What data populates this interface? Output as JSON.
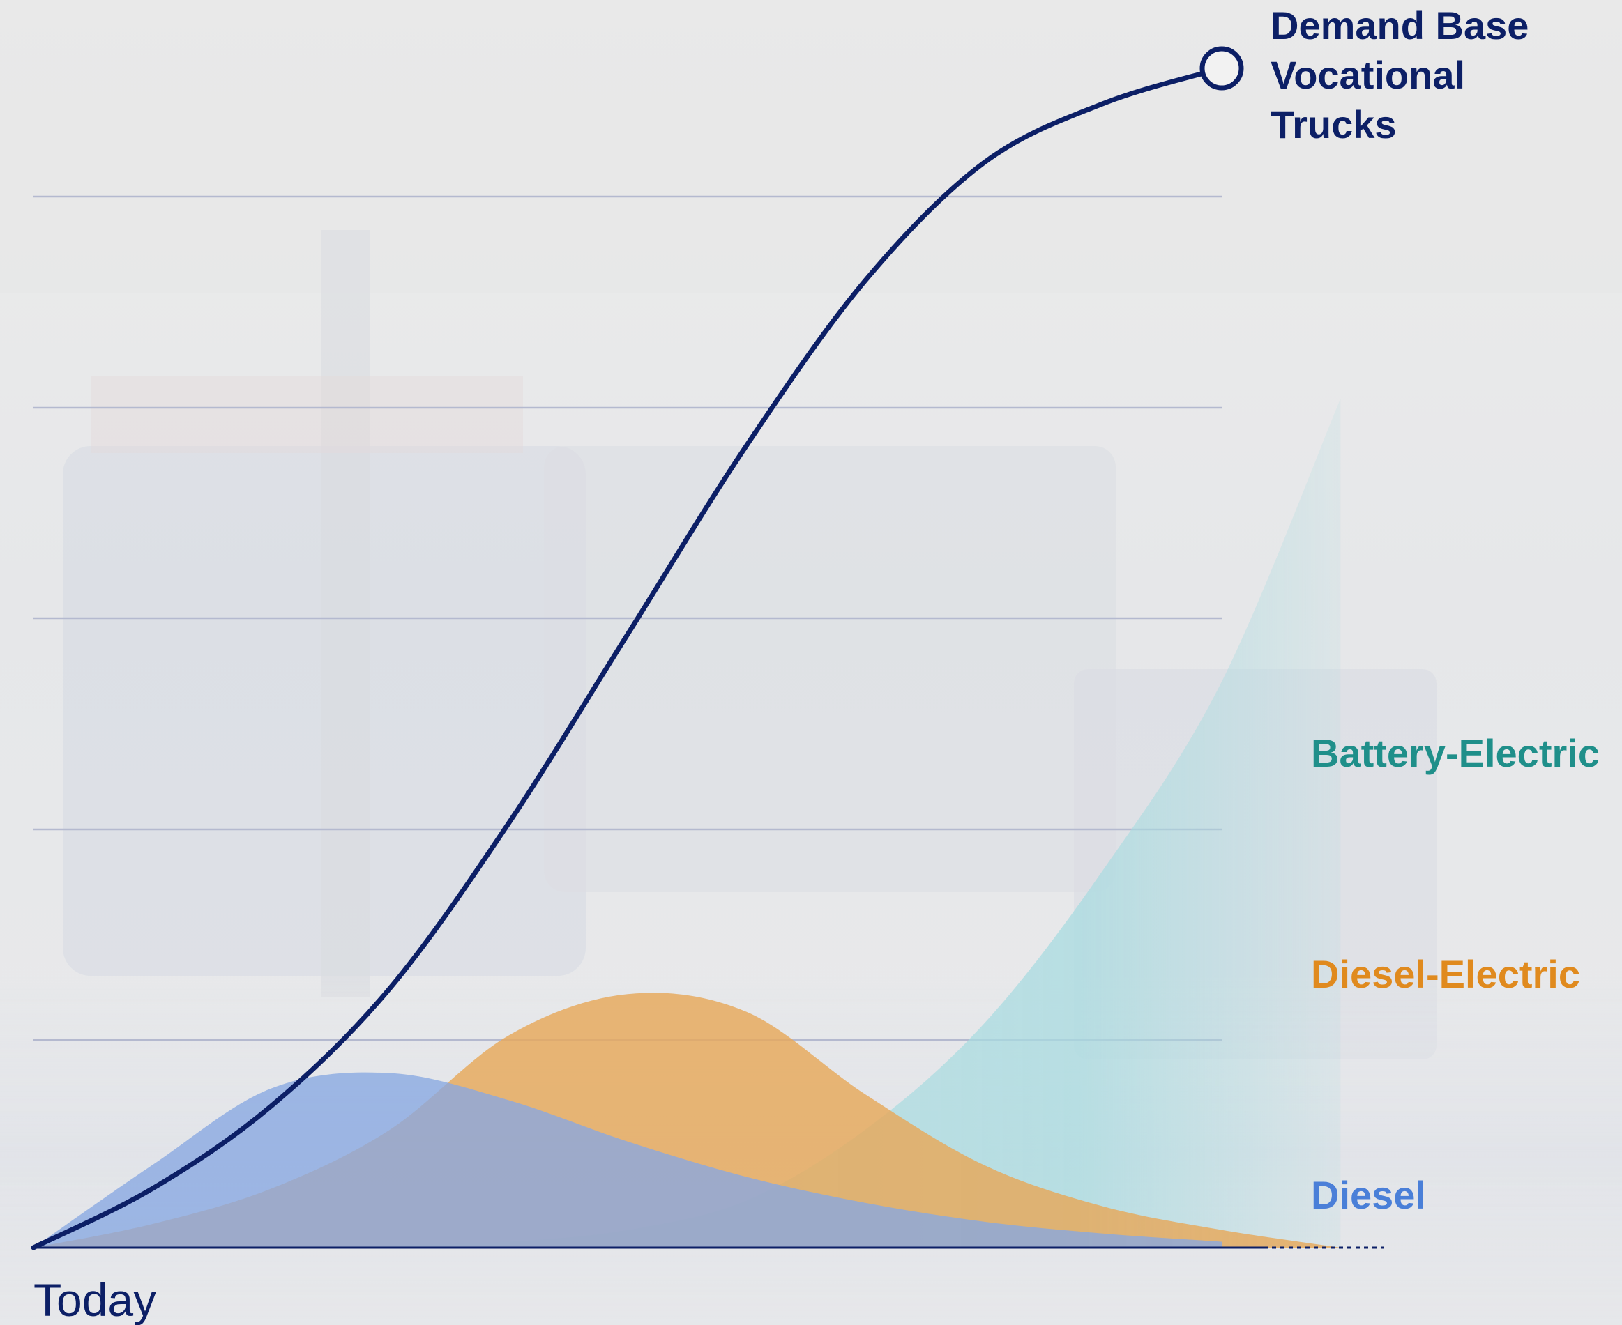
{
  "chart_data": {
    "type": "area",
    "title": "",
    "xlabel": "",
    "ylabel": "",
    "x_start_label": "Today",
    "grid": "horizontal",
    "series": [
      {
        "name": "Demand Base Vocational Trucks",
        "kind": "line",
        "color": "#0c1f66",
        "x": [
          0,
          0.1,
          0.2,
          0.3,
          0.4,
          0.5,
          0.6,
          0.7,
          0.8,
          0.9,
          1.0
        ],
        "values": [
          0,
          0.05,
          0.12,
          0.22,
          0.36,
          0.52,
          0.68,
          0.82,
          0.92,
          0.97,
          1.0
        ]
      },
      {
        "name": "Battery-Electric",
        "kind": "area",
        "color": "#9fd6dc",
        "label_color": "#1f8f8a",
        "x": [
          0,
          0.2,
          0.3,
          0.4,
          0.5,
          0.6,
          0.7,
          0.8,
          0.9,
          1.0,
          1.1
        ],
        "values": [
          0,
          0,
          0.002,
          0.005,
          0.015,
          0.04,
          0.1,
          0.19,
          0.32,
          0.48,
          0.72
        ]
      },
      {
        "name": "Diesel-Electric",
        "kind": "area",
        "color": "#e6ab63",
        "label_color": "#e08a1e",
        "x": [
          0,
          0.1,
          0.2,
          0.3,
          0.4,
          0.5,
          0.6,
          0.7,
          0.8,
          0.9,
          1.0,
          1.1
        ],
        "values": [
          0,
          0.02,
          0.05,
          0.1,
          0.18,
          0.215,
          0.2,
          0.13,
          0.07,
          0.035,
          0.015,
          0
        ]
      },
      {
        "name": "Diesel",
        "kind": "area",
        "color": "#8fb0e6",
        "label_color": "#4a7fd8",
        "x": [
          0,
          0.1,
          0.2,
          0.3,
          0.4,
          0.5,
          0.6,
          0.7,
          0.8,
          0.9,
          1.0
        ],
        "values": [
          0,
          0.07,
          0.135,
          0.148,
          0.125,
          0.09,
          0.06,
          0.038,
          0.022,
          0.012,
          0.005
        ]
      }
    ],
    "series_labels": {
      "demand": [
        "Demand Base",
        "Vocational",
        "Trucks"
      ],
      "battery": "Battery-Electric",
      "diesel_electric": "Diesel-Electric",
      "diesel": "Diesel"
    }
  }
}
